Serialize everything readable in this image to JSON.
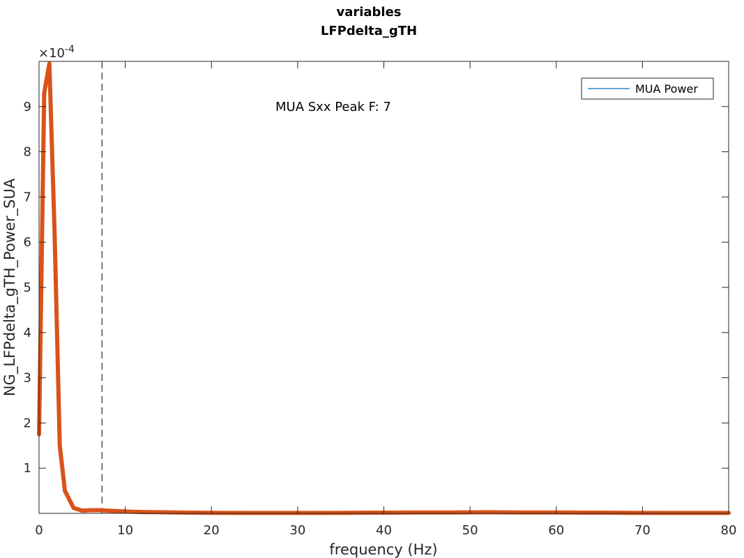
{
  "chart_data": {
    "type": "line",
    "title": [
      "variables",
      "LFPdelta_gTH"
    ],
    "xlabel": "frequency (Hz)",
    "ylabel": "NG_LFPdelta_gTH_Power_SUA",
    "xlim": [
      0,
      80
    ],
    "ylim": [
      0,
      0.001
    ],
    "y_exponent_label": "×10",
    "y_exponent_power": "-4",
    "xticks": [
      0,
      10,
      20,
      30,
      40,
      50,
      60,
      70,
      80
    ],
    "xtick_labels": [
      "0",
      "10",
      "20",
      "30",
      "40",
      "50",
      "60",
      "70",
      "80"
    ],
    "yticks": [
      0.0001,
      0.0002,
      0.0003,
      0.0004,
      0.0005,
      0.0006,
      0.0007,
      0.0008,
      0.0009
    ],
    "ytick_labels": [
      "1",
      "2",
      "3",
      "4",
      "5",
      "6",
      "7",
      "8",
      "9"
    ],
    "grid": false,
    "legend_position": "top-right",
    "annotation": "MUA Sxx Peak F: 7",
    "peak_line_x": 7.3,
    "series": [
      {
        "name": "MUA Power",
        "legend_color": "#0072BD",
        "color": "#D95319",
        "x": [
          0,
          0.6,
          1.2,
          1.8,
          2.4,
          3,
          4,
          5,
          6,
          7,
          8,
          9,
          10,
          12,
          14,
          16,
          18,
          20,
          24,
          28,
          32,
          36,
          40,
          44,
          48,
          52,
          56,
          60,
          64,
          68,
          72,
          76,
          80
        ],
        "y": [
          0.000175,
          0.00093,
          0.000995,
          0.00062,
          0.00015,
          5e-05,
          1.2e-05,
          6e-06,
          7e-06,
          7e-06,
          6e-06,
          5e-06,
          4e-06,
          3e-06,
          2.5e-06,
          2e-06,
          1.5e-06,
          1.2e-06,
          1e-06,
          1e-06,
          1e-06,
          1.2e-06,
          1.5e-06,
          1.8e-06,
          2e-06,
          2.5e-06,
          2e-06,
          1.8e-06,
          1.5e-06,
          1.2e-06,
          1e-06,
          1e-06,
          1e-06
        ]
      },
      {
        "name": "peak-marker",
        "style": "dashed",
        "color": "#000000"
      }
    ]
  }
}
